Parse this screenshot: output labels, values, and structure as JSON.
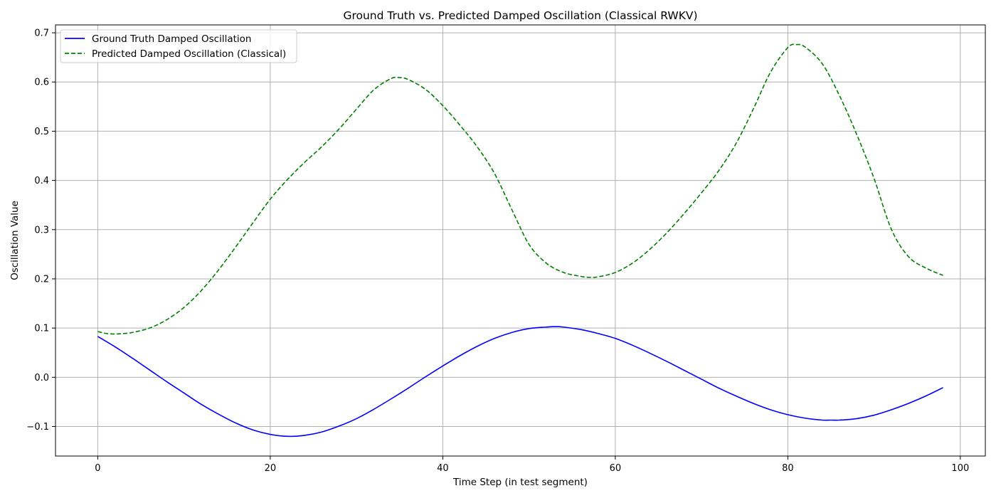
{
  "chart_data": {
    "type": "line",
    "title": "Ground Truth vs. Predicted Damped Oscillation (Classical RWKV)",
    "xlabel": "Time Step (in test segment)",
    "ylabel": "Oscillation Value",
    "xlim": [
      -4.9,
      102.9
    ],
    "ylim": [
      -0.16,
      0.716
    ],
    "xticks": [
      0,
      20,
      40,
      60,
      80,
      100
    ],
    "xtick_labels": [
      "0",
      "20",
      "40",
      "60",
      "80",
      "100"
    ],
    "yticks": [
      -0.1,
      0.0,
      0.1,
      0.2,
      0.3,
      0.4,
      0.5,
      0.6,
      0.7
    ],
    "ytick_labels": [
      "−0.1",
      "0.0",
      "0.1",
      "0.2",
      "0.3",
      "0.4",
      "0.5",
      "0.6",
      "0.7"
    ],
    "grid": true,
    "legend_position": "top-left",
    "series": [
      {
        "name": "Ground Truth Damped Oscillation",
        "color": "#0000ff",
        "linestyle": "solid",
        "x": [
          0,
          2,
          4,
          6,
          8,
          10,
          12,
          14,
          16,
          18,
          20,
          22,
          24,
          26,
          28,
          30,
          32,
          34,
          36,
          38,
          40,
          42,
          44,
          46,
          48,
          50,
          52,
          53,
          54,
          56,
          58,
          60,
          62,
          64,
          66,
          68,
          70,
          72,
          74,
          76,
          78,
          80,
          82,
          84,
          85,
          86,
          88,
          90,
          92,
          94,
          96,
          98
        ],
        "y": [
          0.083,
          0.062,
          0.039,
          0.015,
          -0.009,
          -0.032,
          -0.055,
          -0.075,
          -0.093,
          -0.107,
          -0.116,
          -0.12,
          -0.118,
          -0.111,
          -0.099,
          -0.084,
          -0.065,
          -0.044,
          -0.022,
          0.001,
          0.023,
          0.044,
          0.063,
          0.079,
          0.091,
          0.099,
          0.102,
          0.103,
          0.102,
          0.097,
          0.089,
          0.079,
          0.065,
          0.049,
          0.032,
          0.014,
          -0.004,
          -0.022,
          -0.038,
          -0.053,
          -0.066,
          -0.076,
          -0.083,
          -0.087,
          -0.087,
          -0.087,
          -0.084,
          -0.077,
          -0.066,
          -0.053,
          -0.038,
          -0.021
        ]
      },
      {
        "name": "Predicted Damped Oscillation (Classical)",
        "color": "#008000",
        "linestyle": "dashed",
        "x": [
          0,
          1,
          2,
          3,
          4,
          6,
          8,
          10,
          12,
          14,
          16,
          18,
          20,
          22,
          24,
          26,
          28,
          30,
          32,
          34,
          35,
          36,
          38,
          40,
          42,
          44,
          46,
          48,
          50,
          52,
          54,
          56,
          57,
          58,
          60,
          62,
          64,
          66,
          68,
          70,
          72,
          74,
          76,
          78,
          80,
          81,
          82,
          84,
          86,
          88,
          90,
          92,
          94,
          96,
          98
        ],
        "y": [
          0.093,
          0.089,
          0.088,
          0.089,
          0.091,
          0.1,
          0.117,
          0.142,
          0.176,
          0.218,
          0.265,
          0.314,
          0.362,
          0.402,
          0.437,
          0.469,
          0.505,
          0.545,
          0.584,
          0.607,
          0.609,
          0.605,
          0.585,
          0.552,
          0.512,
          0.468,
          0.414,
          0.341,
          0.27,
          0.232,
          0.213,
          0.205,
          0.203,
          0.204,
          0.213,
          0.232,
          0.26,
          0.294,
          0.333,
          0.375,
          0.42,
          0.475,
          0.545,
          0.62,
          0.67,
          0.676,
          0.671,
          0.637,
          0.572,
          0.493,
          0.404,
          0.301,
          0.245,
          0.222,
          0.207
        ]
      }
    ]
  }
}
